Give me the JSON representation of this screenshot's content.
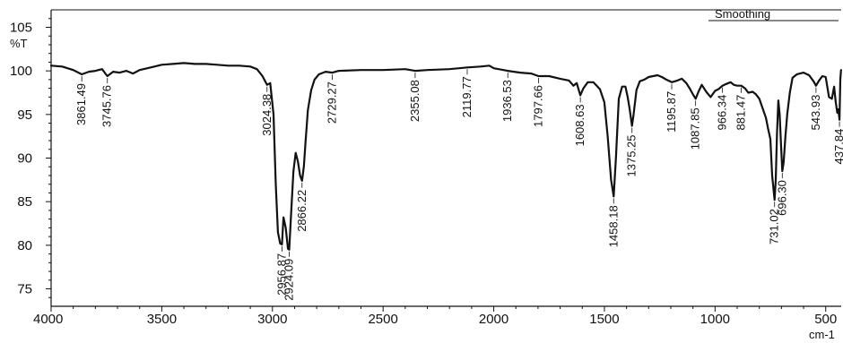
{
  "chart_data": {
    "type": "line",
    "title": "",
    "legend": "Smoothing",
    "xlabel": "cm-1",
    "ylabel": "%T",
    "xlim": [
      4000,
      430
    ],
    "ylim": [
      73,
      107
    ],
    "x_ticks": [
      4000,
      3500,
      3000,
      2500,
      2000,
      1500,
      1000,
      500
    ],
    "y_ticks": [
      75,
      80,
      85,
      90,
      95,
      100,
      105
    ],
    "grid": false,
    "series": [
      {
        "color": "#111111",
        "points": [
          [
            4000,
            100.6
          ],
          [
            3950,
            100.5
          ],
          [
            3900,
            100.1
          ],
          [
            3861.49,
            99.6
          ],
          [
            3830,
            99.9
          ],
          [
            3800,
            100.0
          ],
          [
            3770,
            100.2
          ],
          [
            3745.76,
            99.4
          ],
          [
            3720,
            99.9
          ],
          [
            3690,
            99.8
          ],
          [
            3660,
            100.0
          ],
          [
            3630,
            99.7
          ],
          [
            3600,
            100.1
          ],
          [
            3550,
            100.4
          ],
          [
            3500,
            100.7
          ],
          [
            3450,
            100.8
          ],
          [
            3400,
            100.9
          ],
          [
            3350,
            100.8
          ],
          [
            3300,
            100.8
          ],
          [
            3250,
            100.7
          ],
          [
            3200,
            100.6
          ],
          [
            3150,
            100.6
          ],
          [
            3100,
            100.5
          ],
          [
            3070,
            100.2
          ],
          [
            3045,
            99.4
          ],
          [
            3024.38,
            98.4
          ],
          [
            3010,
            98.6
          ],
          [
            2995,
            95.0
          ],
          [
            2985,
            87.0
          ],
          [
            2975,
            81.5
          ],
          [
            2965,
            80.2
          ],
          [
            2956.87,
            80.1
          ],
          [
            2950,
            83.2
          ],
          [
            2940,
            82.0
          ],
          [
            2930,
            79.6
          ],
          [
            2924.09,
            79.5
          ],
          [
            2915,
            84.0
          ],
          [
            2905,
            88.5
          ],
          [
            2895,
            90.6
          ],
          [
            2885,
            89.6
          ],
          [
            2875,
            88.0
          ],
          [
            2866.22,
            87.4
          ],
          [
            2858,
            89.0
          ],
          [
            2850,
            92.0
          ],
          [
            2840,
            95.5
          ],
          [
            2825,
            97.8
          ],
          [
            2810,
            99.0
          ],
          [
            2790,
            99.6
          ],
          [
            2760,
            99.9
          ],
          [
            2729.27,
            99.8
          ],
          [
            2700,
            100.0
          ],
          [
            2600,
            100.1
          ],
          [
            2500,
            100.1
          ],
          [
            2400,
            100.2
          ],
          [
            2355.08,
            100.0
          ],
          [
            2300,
            100.1
          ],
          [
            2200,
            100.2
          ],
          [
            2119.77,
            100.4
          ],
          [
            2060,
            100.5
          ],
          [
            2020,
            100.6
          ],
          [
            2000,
            100.3
          ],
          [
            1936.53,
            100.0
          ],
          [
            1880,
            99.8
          ],
          [
            1830,
            99.7
          ],
          [
            1797.66,
            99.4
          ],
          [
            1750,
            99.4
          ],
          [
            1700,
            99.1
          ],
          [
            1660,
            98.9
          ],
          [
            1640,
            98.3
          ],
          [
            1625,
            98.6
          ],
          [
            1608.63,
            97.2
          ],
          [
            1595,
            98.0
          ],
          [
            1575,
            98.7
          ],
          [
            1550,
            98.7
          ],
          [
            1520,
            97.9
          ],
          [
            1500,
            96.4
          ],
          [
            1485,
            92.5
          ],
          [
            1470,
            87.5
          ],
          [
            1458.18,
            85.6
          ],
          [
            1448,
            90.0
          ],
          [
            1435,
            96.8
          ],
          [
            1420,
            98.2
          ],
          [
            1405,
            98.2
          ],
          [
            1395,
            97.0
          ],
          [
            1385,
            95.5
          ],
          [
            1375.25,
            93.7
          ],
          [
            1368,
            95.0
          ],
          [
            1355,
            97.8
          ],
          [
            1340,
            98.8
          ],
          [
            1320,
            99.0
          ],
          [
            1300,
            99.3
          ],
          [
            1280,
            99.4
          ],
          [
            1260,
            99.5
          ],
          [
            1240,
            99.3
          ],
          [
            1220,
            99.0
          ],
          [
            1195.87,
            98.7
          ],
          [
            1170,
            98.9
          ],
          [
            1150,
            99.1
          ],
          [
            1130,
            98.6
          ],
          [
            1115,
            98.0
          ],
          [
            1100,
            97.3
          ],
          [
            1087.85,
            96.8
          ],
          [
            1075,
            97.6
          ],
          [
            1060,
            98.4
          ],
          [
            1040,
            97.6
          ],
          [
            1020,
            97.0
          ],
          [
            1000,
            97.7
          ],
          [
            985,
            97.9
          ],
          [
            966.34,
            98.3
          ],
          [
            950,
            98.5
          ],
          [
            930,
            98.7
          ],
          [
            915,
            98.4
          ],
          [
            900,
            98.3
          ],
          [
            881.47,
            98.3
          ],
          [
            865,
            98.0
          ],
          [
            850,
            97.5
          ],
          [
            830,
            97.6
          ],
          [
            815,
            97.3
          ],
          [
            800,
            96.8
          ],
          [
            785,
            95.7
          ],
          [
            770,
            94.6
          ],
          [
            760,
            93.3
          ],
          [
            750,
            92.2
          ],
          [
            742,
            88.0
          ],
          [
            731.02,
            85.2
          ],
          [
            726,
            87.5
          ],
          [
            720,
            92.8
          ],
          [
            714,
            96.6
          ],
          [
            708,
            95.0
          ],
          [
            702,
            91.5
          ],
          [
            696.3,
            88.5
          ],
          [
            690,
            89.5
          ],
          [
            682,
            92.5
          ],
          [
            674,
            95.0
          ],
          [
            662,
            97.5
          ],
          [
            650,
            99.2
          ],
          [
            630,
            99.6
          ],
          [
            600,
            99.8
          ],
          [
            575,
            99.5
          ],
          [
            555,
            98.8
          ],
          [
            543.93,
            98.3
          ],
          [
            530,
            98.9
          ],
          [
            515,
            99.4
          ],
          [
            500,
            99.3
          ],
          [
            485,
            97.0
          ],
          [
            472,
            96.8
          ],
          [
            462,
            98.2
          ],
          [
            455,
            96.5
          ],
          [
            448,
            95.2
          ],
          [
            443,
            95.6
          ],
          [
            437.84,
            94.4
          ],
          [
            434,
            99.0
          ],
          [
            431,
            100.1
          ]
        ]
      }
    ],
    "peaks": [
      {
        "x": 3861.49,
        "label": "3861.49"
      },
      {
        "x": 3745.76,
        "label": "3745.76"
      },
      {
        "x": 3024.38,
        "label": "3024.38"
      },
      {
        "x": 2956.87,
        "label": "2956.87"
      },
      {
        "x": 2924.09,
        "label": "2924.09"
      },
      {
        "x": 2866.22,
        "label": "2866.22"
      },
      {
        "x": 2729.27,
        "label": "2729.27"
      },
      {
        "x": 2355.08,
        "label": "2355.08"
      },
      {
        "x": 2119.77,
        "label": "2119.77"
      },
      {
        "x": 1936.53,
        "label": "1936.53"
      },
      {
        "x": 1797.66,
        "label": "1797.66"
      },
      {
        "x": 1608.63,
        "label": "1608.63"
      },
      {
        "x": 1458.18,
        "label": "1458.18"
      },
      {
        "x": 1375.25,
        "label": "1375.25"
      },
      {
        "x": 1195.87,
        "label": "1195.87"
      },
      {
        "x": 1087.85,
        "label": "1087.85"
      },
      {
        "x": 966.34,
        "label": "966.34"
      },
      {
        "x": 881.47,
        "label": "881.47"
      },
      {
        "x": 731.02,
        "label": "731.02"
      },
      {
        "x": 696.3,
        "label": "696.30"
      },
      {
        "x": 543.93,
        "label": "543.93"
      },
      {
        "x": 437.84,
        "label": "437.84"
      }
    ]
  }
}
